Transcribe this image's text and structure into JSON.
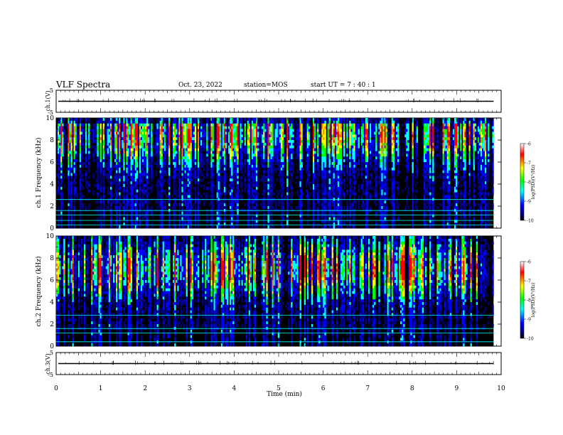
{
  "header": {
    "title": "VLF Spectra",
    "date": "Oct. 23, 2022",
    "station": "station=MOS",
    "start_ut": "start UT =  7 : 40 : 1"
  },
  "panels": {
    "ch1_wave_label": "ch.1(V)",
    "ch1_spec_label": "ch.1 Frequency (kHz)",
    "ch2_spec_label": "ch.2 Frequency (kHz)",
    "ch3_wave_label": "ch.3(V)"
  },
  "colorbar": {
    "label": "log(PSD)(V²/Hz)",
    "ticks": [
      "-6",
      "-7",
      "-8",
      "-9",
      "-10"
    ],
    "colors": [
      "#ffffff",
      "#ff0000",
      "#ffff00",
      "#00ff00",
      "#00ffff",
      "#0000ff",
      "#000080",
      "#000000"
    ]
  },
  "chart_data": [
    {
      "type": "line",
      "title": "ch.1(V)",
      "ylabel": "ch.1(V)",
      "ylim": [
        -5,
        5
      ],
      "y_ticks": [
        "5",
        "-5"
      ],
      "xlim": [
        0,
        10
      ],
      "series": [
        {
          "values": "near-constant trace at about 0 V with small spikes"
        }
      ]
    },
    {
      "type": "heatmap",
      "ylabel": "ch.1 Frequency (kHz)",
      "xlim": [
        0,
        10
      ],
      "ylim": [
        0,
        10
      ],
      "y_ticks": [
        "0",
        "2",
        "4",
        "6",
        "8",
        "10"
      ],
      "data_end_min": 9.83,
      "zlim": [
        -10,
        -6
      ],
      "z_label": "log(PSD)(V²/Hz)",
      "band_center_khz": 8.5,
      "horizontal_lines_khz": [
        0.3,
        0.7,
        1.2,
        1.6,
        2.6
      ]
    },
    {
      "type": "heatmap",
      "ylabel": "ch.2 Frequency (kHz)",
      "xlim": [
        0,
        10
      ],
      "ylim": [
        0,
        10
      ],
      "y_ticks": [
        "0",
        "2",
        "4",
        "6",
        "8",
        "10"
      ],
      "data_end_min": 9.83,
      "zlim": [
        -10,
        -6
      ],
      "z_label": "log(PSD)(V²/Hz)",
      "band_center_khz": 7.0,
      "horizontal_lines_khz": [
        0.4,
        1.2,
        1.6,
        2.8
      ]
    },
    {
      "type": "line",
      "title": "ch.3(V)",
      "ylabel": "ch.3(V)",
      "ylim": [
        -5,
        5
      ],
      "y_ticks": [
        "5",
        "-5"
      ],
      "xlim": [
        0,
        10
      ],
      "xlabel": "Time  (min)",
      "x_ticks": [
        "0",
        "1",
        "2",
        "3",
        "4",
        "5",
        "6",
        "7",
        "8",
        "9",
        "10"
      ],
      "series": [
        {
          "values": "near-constant trace at about 0 V with small spikes"
        }
      ]
    }
  ]
}
